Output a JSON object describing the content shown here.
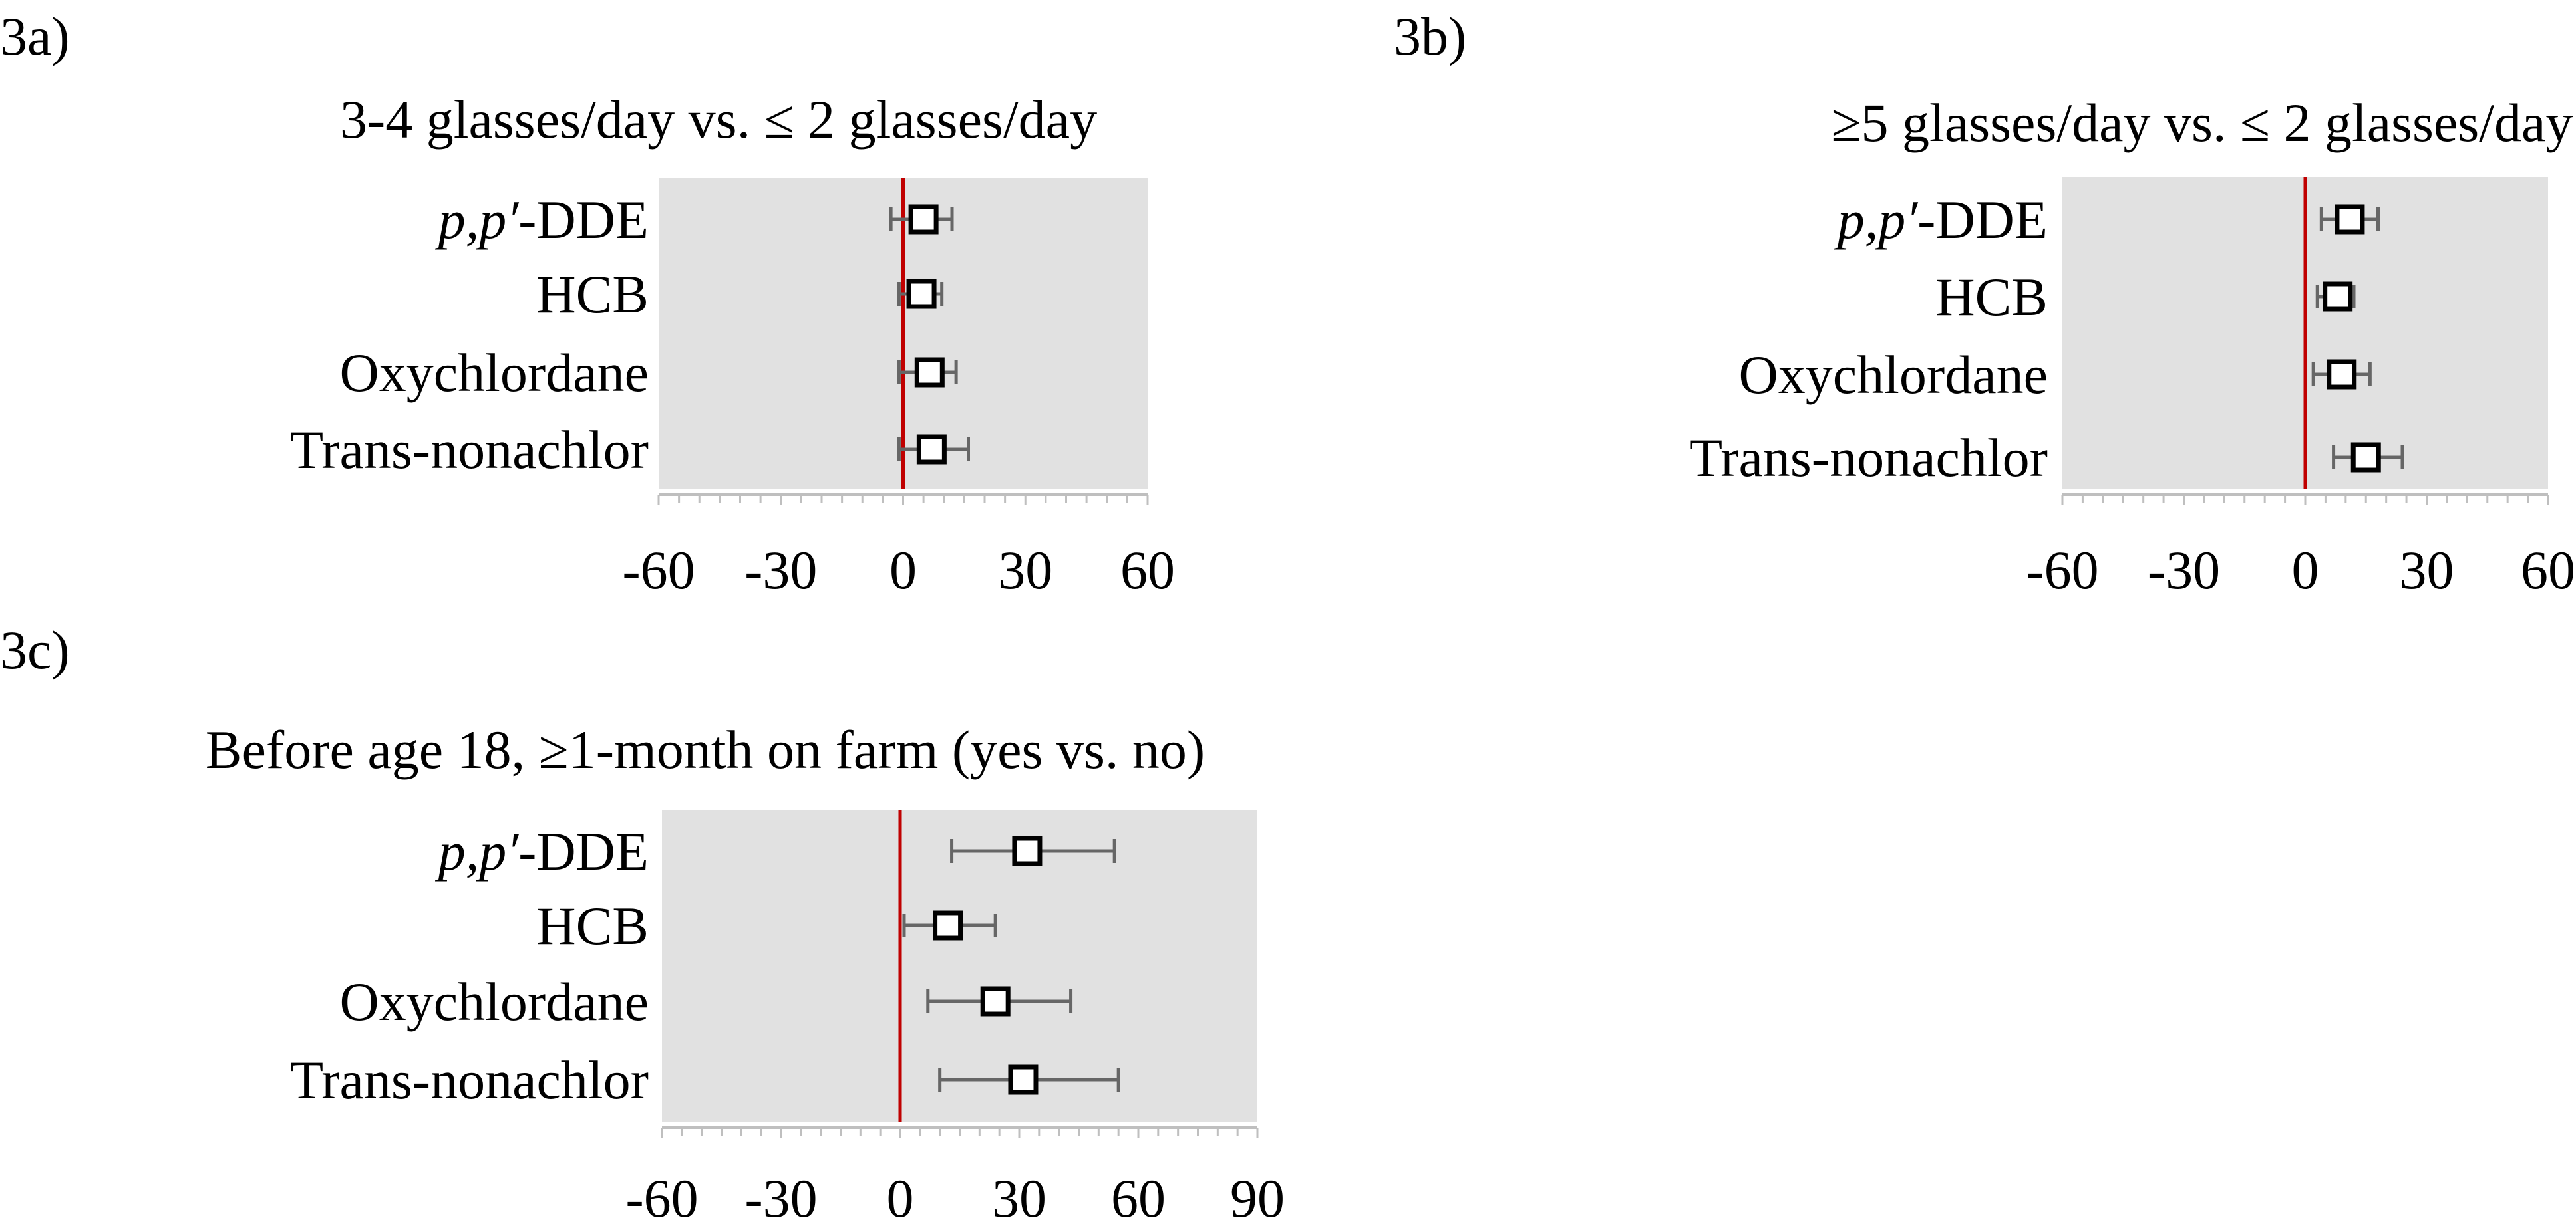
{
  "chart_data": [
    {
      "type": "scatter",
      "panel_label": "3a)",
      "title": "3-4 glasses/day vs. ≤ 2 glasses/day",
      "categories": [
        "p,p′-DDE",
        "HCB",
        "Oxychlordane",
        "Trans-nonachlor"
      ],
      "category_italic_prefix": [
        "p,p′",
        "",
        "",
        ""
      ],
      "category_suffix": [
        "-DDE",
        "HCB",
        "Oxychlordane",
        "Trans-nonachlor"
      ],
      "estimates": [
        5,
        4.5,
        6.5,
        7
      ],
      "ci_lower": [
        -3,
        -1,
        -1,
        -1
      ],
      "ci_upper": [
        12,
        9.5,
        13,
        16
      ],
      "xlim": [
        -60,
        60
      ],
      "xticks": [
        -60,
        -30,
        0,
        30,
        60
      ],
      "xtick_labels": [
        "-60",
        "-30",
        "0",
        "30",
        "60"
      ],
      "reference_line": 0,
      "grid": false,
      "colors": {
        "background": "#e1e1e1",
        "reference": "#c00000",
        "error_bar": "#666666",
        "marker_edge": "#000000",
        "marker_fill": "#ffffff"
      }
    },
    {
      "type": "scatter",
      "panel_label": "3b)",
      "title": "≥5 glasses/day vs. ≤ 2 glasses/day",
      "categories": [
        "p,p′-DDE",
        "HCB",
        "Oxychlordane",
        "Trans-nonachlor"
      ],
      "category_italic_prefix": [
        "p,p′",
        "",
        "",
        ""
      ],
      "category_suffix": [
        "-DDE",
        "HCB",
        "Oxychlordane",
        "Trans-nonachlor"
      ],
      "estimates": [
        11,
        8,
        9,
        15
      ],
      "ci_lower": [
        4,
        3,
        2,
        7
      ],
      "ci_upper": [
        18,
        12,
        16,
        24
      ],
      "xlim": [
        -60,
        60
      ],
      "xticks": [
        -60,
        -30,
        0,
        30,
        60
      ],
      "xtick_labels": [
        "-60",
        "-30",
        "0",
        "30",
        "60"
      ],
      "reference_line": 0,
      "grid": false,
      "colors": {
        "background": "#e1e1e1",
        "reference": "#c00000",
        "error_bar": "#666666",
        "marker_edge": "#000000",
        "marker_fill": "#ffffff"
      }
    },
    {
      "type": "scatter",
      "panel_label": "3c)",
      "title": "Before age 18,  ≥1-month on farm (yes vs. no)",
      "categories": [
        "p,p′-DDE",
        "HCB",
        "Oxychlordane",
        "Trans-nonachlor"
      ],
      "category_italic_prefix": [
        "p,p′",
        "",
        "",
        ""
      ],
      "category_suffix": [
        "-DDE",
        "HCB",
        "Oxychlordane",
        "Trans-nonachlor"
      ],
      "estimates": [
        32,
        12,
        24,
        31
      ],
      "ci_lower": [
        13,
        1,
        7,
        10
      ],
      "ci_upper": [
        54,
        24,
        43,
        55
      ],
      "xlim": [
        -60,
        90
      ],
      "xticks": [
        -60,
        -30,
        0,
        30,
        60,
        90
      ],
      "xtick_labels": [
        "-60",
        "-30",
        "0",
        "30",
        "60",
        "90"
      ],
      "reference_line": 0,
      "grid": false,
      "colors": {
        "background": "#e1e1e1",
        "reference": "#c00000",
        "error_bar": "#666666",
        "marker_edge": "#000000",
        "marker_fill": "#ffffff"
      }
    }
  ]
}
